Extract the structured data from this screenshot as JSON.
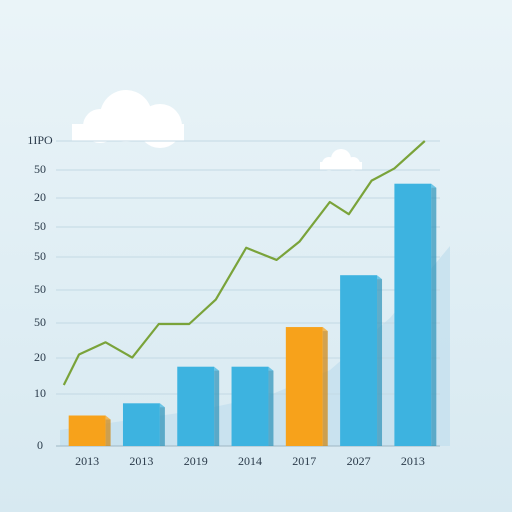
{
  "chart_data": {
    "type": "bar",
    "categories": [
      "2013",
      "2013",
      "2019",
      "2014",
      "2017",
      "2027",
      "2013"
    ],
    "values": [
      10,
      14,
      26,
      26,
      39,
      56,
      86
    ],
    "colors": [
      "#f7a21b",
      "#3db3e0",
      "#3db3e0",
      "#3db3e0",
      "#f7a21b",
      "#3db3e0",
      "#3db3e0"
    ],
    "ylim": [
      0,
      100
    ],
    "y_labels": [
      "1IPO",
      "50",
      "20",
      "50",
      "50",
      "50",
      "50",
      "20",
      "10",
      "0"
    ],
    "grid": true,
    "line": {
      "color": "#7aa33a",
      "xlim": [
        0,
        100
      ],
      "x": [
        1,
        5,
        12,
        19,
        26,
        34,
        41,
        49,
        57,
        63,
        71,
        76,
        82,
        88,
        96
      ],
      "values": [
        20,
        30,
        34,
        29,
        40,
        40,
        48,
        65,
        61,
        67,
        80,
        76,
        87,
        91,
        100
      ]
    }
  }
}
